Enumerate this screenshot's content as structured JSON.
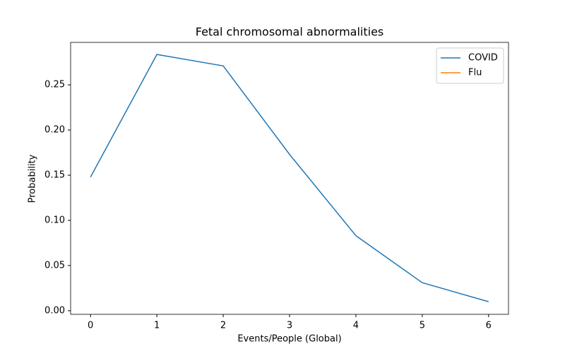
{
  "chart_data": {
    "type": "line",
    "title": "Fetal chromosomal abnormalities",
    "xlabel": "Events/People (Global)",
    "ylabel": "Probability",
    "x": [
      0,
      1,
      2,
      3,
      4,
      5,
      6
    ],
    "series": [
      {
        "name": "COVID",
        "color": "#1f77b4",
        "values": [
          0.148,
          0.2836,
          0.271,
          0.173,
          0.083,
          0.031,
          0.01
        ]
      },
      {
        "name": "Flu",
        "color": "#ff7f0e",
        "values": [
          null,
          null,
          null,
          null,
          null,
          null,
          null
        ]
      }
    ],
    "xlim": [
      -0.3,
      6.3
    ],
    "xticks": [
      0,
      1,
      2,
      3,
      4,
      5,
      6
    ],
    "ylim": [
      -0.004,
      0.297
    ],
    "yticks": [
      {
        "value": 0,
        "label": "0.00"
      },
      {
        "value": 0.05,
        "label": "0.05"
      },
      {
        "value": 0.1,
        "label": "0.10"
      },
      {
        "value": 0.15,
        "label": "0.15"
      },
      {
        "value": 0.2,
        "label": "0.20"
      },
      {
        "value": 0.25,
        "label": "0.25"
      }
    ],
    "legend": "upper right",
    "grid": false
  }
}
